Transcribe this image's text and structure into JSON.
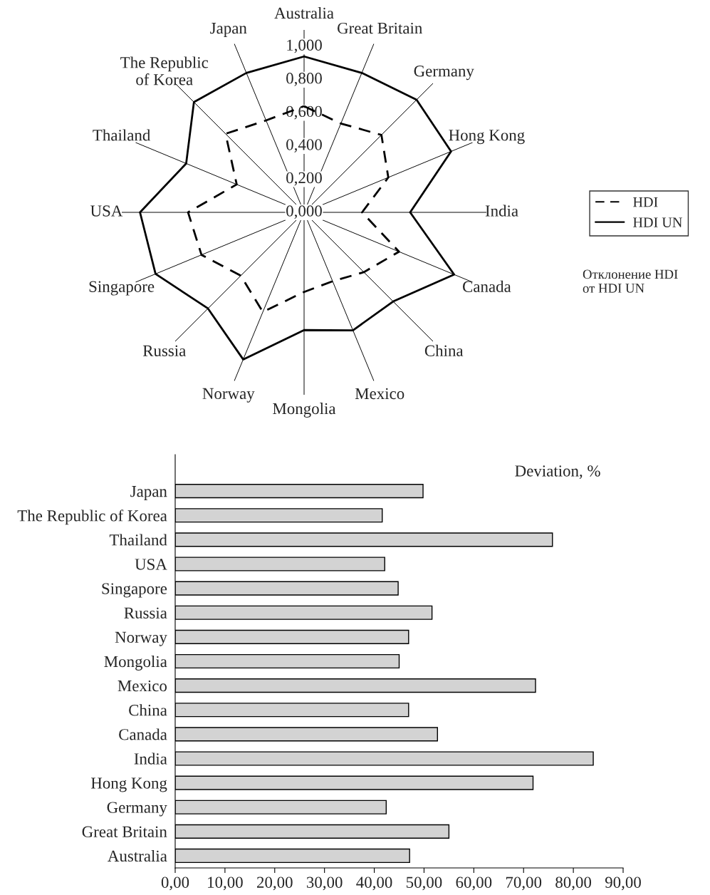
{
  "chart_data": [
    {
      "type": "radar",
      "categories": [
        "Australia",
        "Great Britain",
        "Germany",
        "Hong Kong",
        "India",
        "Canada",
        "China",
        "Mexico",
        "Mongolia",
        "Norway",
        "Russia",
        "Singapore",
        "USA",
        "Thailand",
        "The Republic\nof Korea",
        "Japan"
      ],
      "series": [
        {
          "name": "HDI",
          "color": "#000000",
          "line_style": "dashed",
          "values": [
            0.64,
            0.58,
            0.66,
            0.55,
            0.35,
            0.62,
            0.51,
            0.45,
            0.48,
            0.65,
            0.54,
            0.67,
            0.7,
            0.44,
            0.67,
            0.6
          ]
        },
        {
          "name": "HDI UN",
          "color": "#000000",
          "line_style": "solid",
          "values": [
            0.94,
            0.91,
            0.96,
            0.96,
            0.64,
            0.98,
            0.76,
            0.77,
            0.71,
            0.96,
            0.82,
            0.97,
            0.99,
            0.77,
            0.94,
            0.91
          ]
        }
      ],
      "ylim": [
        0,
        1.1
      ],
      "yticks": [
        {
          "value": 0,
          "label": "0,000"
        },
        {
          "value": 0.2,
          "label": "0,200"
        },
        {
          "value": 0.4,
          "label": "0,400"
        },
        {
          "value": 0.6,
          "label": "0,600"
        },
        {
          "value": 0.8,
          "label": "0,800"
        },
        {
          "value": 1.0,
          "label": "1,000"
        }
      ],
      "grid": "x",
      "legend": "right",
      "marker": "none",
      "annotations": [
        "Отклонение HDI\nот HDI UN"
      ]
    },
    {
      "type": "bar",
      "orientation": "horizontal",
      "title": "Deviation, %",
      "categories": [
        "Japan",
        "The Republic of Korea",
        "Thailand",
        "USA",
        "Singapore",
        "Russia",
        "Norway",
        "Mongolia",
        "Mexico",
        "China",
        "Canada",
        "India",
        "Hong Kong",
        "Germany",
        "Great Britain",
        "Australia"
      ],
      "values": [
        49.8,
        41.6,
        75.8,
        42.1,
        44.8,
        51.6,
        46.9,
        45.0,
        72.4,
        46.9,
        52.7,
        84.0,
        71.9,
        42.4,
        55.0,
        47.1
      ],
      "color": "#d3d3d3",
      "xlim": [
        0,
        90
      ],
      "xticks": [
        {
          "value": 0,
          "label": "0,00"
        },
        {
          "value": 10,
          "label": "10,00"
        },
        {
          "value": 20,
          "label": "20,00"
        },
        {
          "value": 30,
          "label": "30,00"
        },
        {
          "value": 40,
          "label": "40,00"
        },
        {
          "value": 50,
          "label": "50,00"
        },
        {
          "value": 60,
          "label": "60,00"
        },
        {
          "value": 70,
          "label": "70,00"
        },
        {
          "value": 80,
          "label": "80,00"
        },
        {
          "value": 90,
          "label": "90,00"
        }
      ],
      "grid": false
    }
  ]
}
